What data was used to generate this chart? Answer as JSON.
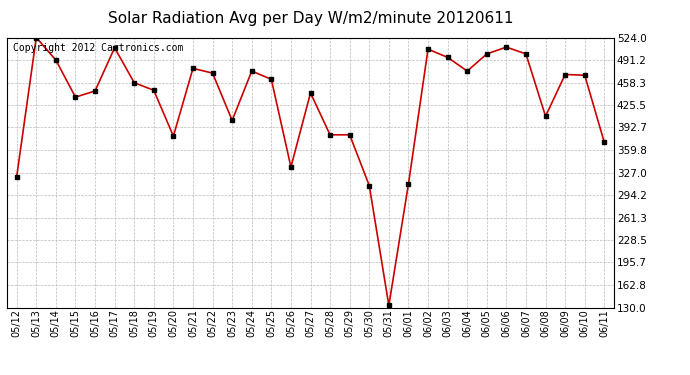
{
  "title": "Solar Radiation Avg per Day W/m2/minute 20120611",
  "copyright_text": "Copyright 2012 Cartronics.com",
  "dates": [
    "05/12",
    "05/13",
    "05/14",
    "05/15",
    "05/16",
    "05/17",
    "05/18",
    "05/19",
    "05/20",
    "05/21",
    "05/22",
    "05/23",
    "05/24",
    "05/25",
    "05/26",
    "05/27",
    "05/28",
    "05/29",
    "05/30",
    "05/31",
    "06/01",
    "06/02",
    "06/03",
    "06/04",
    "06/05",
    "06/06",
    "06/07",
    "06/08",
    "06/09",
    "06/10",
    "06/11"
  ],
  "values": [
    321,
    524,
    491,
    437,
    446,
    509,
    458,
    447,
    380,
    479,
    472,
    403,
    475,
    463,
    335,
    443,
    382,
    382,
    308,
    133,
    310,
    507,
    495,
    475,
    500,
    510,
    500,
    409,
    470,
    469,
    371
  ],
  "yticks": [
    130.0,
    162.8,
    195.7,
    228.5,
    261.3,
    294.2,
    327.0,
    359.8,
    392.7,
    425.5,
    458.3,
    491.2,
    524.0
  ],
  "ymin": 130.0,
  "ymax": 524.0,
  "line_color": "#cc0000",
  "marker_color": "#000000",
  "bg_color": "#ffffff",
  "grid_color": "#bbbbbb",
  "title_fontsize": 11,
  "copyright_fontsize": 7,
  "tick_fontsize": 7,
  "ytick_fontsize": 7.5
}
